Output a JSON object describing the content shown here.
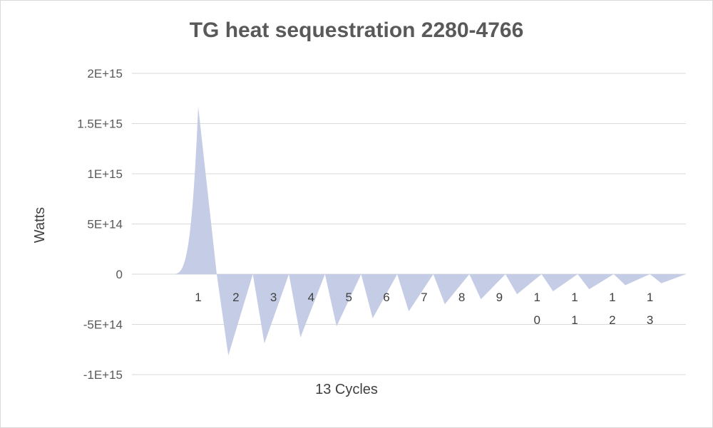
{
  "chart_data": {
    "type": "area",
    "title": "TG heat sequestration 2280-4766",
    "xlabel": "13 Cycles",
    "ylabel": "Watts",
    "ylim": [
      -1000000000000000.0,
      2000000000000000.0
    ],
    "yticks": [
      2000000000000000.0,
      1500000000000000.0,
      1000000000000000.0,
      500000000000000.0,
      0,
      -500000000000000.0,
      -1000000000000000.0
    ],
    "ytick_labels": [
      "2E+15",
      "1.5E+15",
      "1E+15",
      "5E+14",
      "0",
      "-5E+14",
      "-1E+15"
    ],
    "categories": [
      "1",
      "2",
      "3",
      "4",
      "5",
      "6",
      "7",
      "8",
      "9",
      "10",
      "11",
      "12",
      "13"
    ],
    "grid": true,
    "legend": "none",
    "color": "#c5cde6",
    "series": [
      {
        "peaks": [
          1670000000000000.0,
          -810000000000000.0,
          -690000000000000.0,
          -630000000000000.0,
          -520000000000000.0,
          -440000000000000.0,
          -370000000000000.0,
          -300000000000000.0,
          -250000000000000.0,
          -200000000000000.0,
          -170000000000000.0,
          -150000000000000.0,
          -110000000000000.0,
          -90000000000000.0
        ]
      }
    ]
  }
}
